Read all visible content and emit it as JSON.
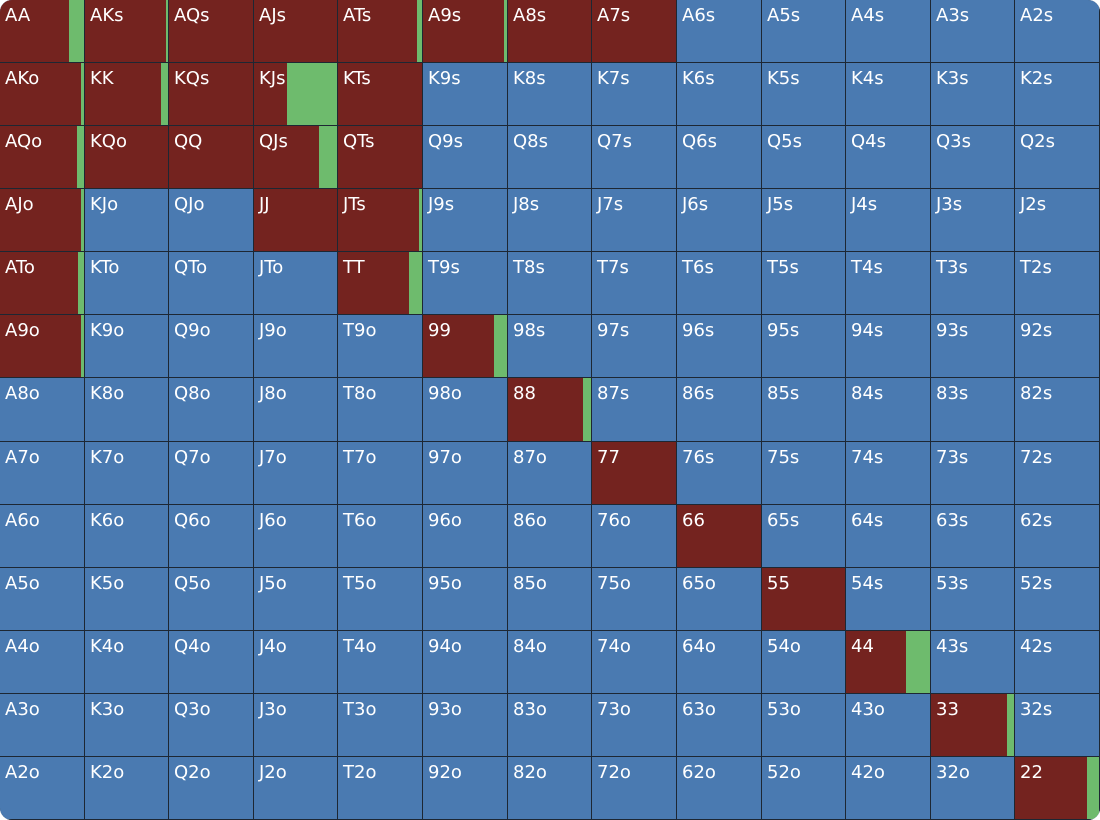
{
  "grid": {
    "colors": {
      "fold": "#4a7ab1",
      "raise": "#74231f",
      "call": "#6ebb6d"
    },
    "rows": [
      [
        {
          "label": "AA",
          "raise": 82,
          "call": 18
        },
        {
          "label": "AKs",
          "raise": 97,
          "call": 3
        },
        {
          "label": "AQs",
          "raise": 100
        },
        {
          "label": "AJs",
          "raise": 100
        },
        {
          "label": "ATs",
          "raise": 94,
          "call": 6
        },
        {
          "label": "A9s",
          "raise": 96,
          "call": 4
        },
        {
          "label": "A8s",
          "raise": 100
        },
        {
          "label": "A7s",
          "raise": 100
        },
        {
          "label": "A6s"
        },
        {
          "label": "A5s"
        },
        {
          "label": "A4s"
        },
        {
          "label": "A3s"
        },
        {
          "label": "A2s"
        }
      ],
      [
        {
          "label": "AKo",
          "raise": 97,
          "call": 3
        },
        {
          "label": "KK",
          "raise": 92,
          "call": 8
        },
        {
          "label": "KQs",
          "raise": 100
        },
        {
          "label": "KJs",
          "raise": 40,
          "call": 60
        },
        {
          "label": "KTs",
          "raise": 100
        },
        {
          "label": "K9s"
        },
        {
          "label": "K8s"
        },
        {
          "label": "K7s"
        },
        {
          "label": "K6s"
        },
        {
          "label": "K5s"
        },
        {
          "label": "K4s"
        },
        {
          "label": "K3s"
        },
        {
          "label": "K2s"
        }
      ],
      [
        {
          "label": "AQo",
          "raise": 92,
          "call": 8
        },
        {
          "label": "KQo",
          "raise": 100
        },
        {
          "label": "QQ",
          "raise": 100
        },
        {
          "label": "QJs",
          "raise": 78,
          "call": 22
        },
        {
          "label": "QTs",
          "raise": 100
        },
        {
          "label": "Q9s"
        },
        {
          "label": "Q8s"
        },
        {
          "label": "Q7s"
        },
        {
          "label": "Q6s"
        },
        {
          "label": "Q5s"
        },
        {
          "label": "Q4s"
        },
        {
          "label": "Q3s"
        },
        {
          "label": "Q2s"
        }
      ],
      [
        {
          "label": "AJo",
          "raise": 96,
          "call": 4
        },
        {
          "label": "KJo"
        },
        {
          "label": "QJo"
        },
        {
          "label": "JJ",
          "raise": 100
        },
        {
          "label": "JTs",
          "raise": 96,
          "call": 4
        },
        {
          "label": "J9s"
        },
        {
          "label": "J8s"
        },
        {
          "label": "J7s"
        },
        {
          "label": "J6s"
        },
        {
          "label": "J5s"
        },
        {
          "label": "J4s"
        },
        {
          "label": "J3s"
        },
        {
          "label": "J2s"
        }
      ],
      [
        {
          "label": "ATo",
          "raise": 93,
          "call": 7
        },
        {
          "label": "KTo"
        },
        {
          "label": "QTo"
        },
        {
          "label": "JTo"
        },
        {
          "label": "TT",
          "raise": 85,
          "call": 15
        },
        {
          "label": "T9s"
        },
        {
          "label": "T8s"
        },
        {
          "label": "T7s"
        },
        {
          "label": "T6s"
        },
        {
          "label": "T5s"
        },
        {
          "label": "T4s"
        },
        {
          "label": "T3s"
        },
        {
          "label": "T2s"
        }
      ],
      [
        {
          "label": "A9o",
          "raise": 97,
          "call": 3
        },
        {
          "label": "K9o"
        },
        {
          "label": "Q9o"
        },
        {
          "label": "J9o"
        },
        {
          "label": "T9o"
        },
        {
          "label": "99",
          "raise": 84,
          "call": 16
        },
        {
          "label": "98s"
        },
        {
          "label": "97s"
        },
        {
          "label": "96s"
        },
        {
          "label": "95s"
        },
        {
          "label": "94s"
        },
        {
          "label": "93s"
        },
        {
          "label": "92s"
        }
      ],
      [
        {
          "label": "A8o"
        },
        {
          "label": "K8o"
        },
        {
          "label": "Q8o"
        },
        {
          "label": "J8o"
        },
        {
          "label": "T8o"
        },
        {
          "label": "98o"
        },
        {
          "label": "88",
          "raise": 90,
          "call": 10
        },
        {
          "label": "87s"
        },
        {
          "label": "86s"
        },
        {
          "label": "85s"
        },
        {
          "label": "84s"
        },
        {
          "label": "83s"
        },
        {
          "label": "82s"
        }
      ],
      [
        {
          "label": "A7o"
        },
        {
          "label": "K7o"
        },
        {
          "label": "Q7o"
        },
        {
          "label": "J7o"
        },
        {
          "label": "T7o"
        },
        {
          "label": "97o"
        },
        {
          "label": "87o"
        },
        {
          "label": "77",
          "raise": 100
        },
        {
          "label": "76s"
        },
        {
          "label": "75s"
        },
        {
          "label": "74s"
        },
        {
          "label": "73s"
        },
        {
          "label": "72s"
        }
      ],
      [
        {
          "label": "A6o"
        },
        {
          "label": "K6o"
        },
        {
          "label": "Q6o"
        },
        {
          "label": "J6o"
        },
        {
          "label": "T6o"
        },
        {
          "label": "96o"
        },
        {
          "label": "86o"
        },
        {
          "label": "76o"
        },
        {
          "label": "66",
          "raise": 100
        },
        {
          "label": "65s"
        },
        {
          "label": "64s"
        },
        {
          "label": "63s"
        },
        {
          "label": "62s"
        }
      ],
      [
        {
          "label": "A5o"
        },
        {
          "label": "K5o"
        },
        {
          "label": "Q5o"
        },
        {
          "label": "J5o"
        },
        {
          "label": "T5o"
        },
        {
          "label": "95o"
        },
        {
          "label": "85o"
        },
        {
          "label": "75o"
        },
        {
          "label": "65o"
        },
        {
          "label": "55",
          "raise": 100
        },
        {
          "label": "54s"
        },
        {
          "label": "53s"
        },
        {
          "label": "52s"
        }
      ],
      [
        {
          "label": "A4o"
        },
        {
          "label": "K4o"
        },
        {
          "label": "Q4o"
        },
        {
          "label": "J4o"
        },
        {
          "label": "T4o"
        },
        {
          "label": "94o"
        },
        {
          "label": "84o"
        },
        {
          "label": "74o"
        },
        {
          "label": "64o"
        },
        {
          "label": "54o"
        },
        {
          "label": "44",
          "raise": 71,
          "call": 29
        },
        {
          "label": "43s"
        },
        {
          "label": "42s"
        }
      ],
      [
        {
          "label": "A3o"
        },
        {
          "label": "K3o"
        },
        {
          "label": "Q3o"
        },
        {
          "label": "J3o"
        },
        {
          "label": "T3o"
        },
        {
          "label": "93o"
        },
        {
          "label": "83o"
        },
        {
          "label": "73o"
        },
        {
          "label": "63o"
        },
        {
          "label": "53o"
        },
        {
          "label": "43o"
        },
        {
          "label": "33",
          "raise": 91,
          "call": 9
        },
        {
          "label": "32s"
        }
      ],
      [
        {
          "label": "A2o"
        },
        {
          "label": "K2o"
        },
        {
          "label": "Q2o"
        },
        {
          "label": "J2o"
        },
        {
          "label": "T2o"
        },
        {
          "label": "92o"
        },
        {
          "label": "82o"
        },
        {
          "label": "72o"
        },
        {
          "label": "62o"
        },
        {
          "label": "52o"
        },
        {
          "label": "42o"
        },
        {
          "label": "32o"
        },
        {
          "label": "22",
          "raise": 86,
          "call": 14
        }
      ]
    ]
  }
}
